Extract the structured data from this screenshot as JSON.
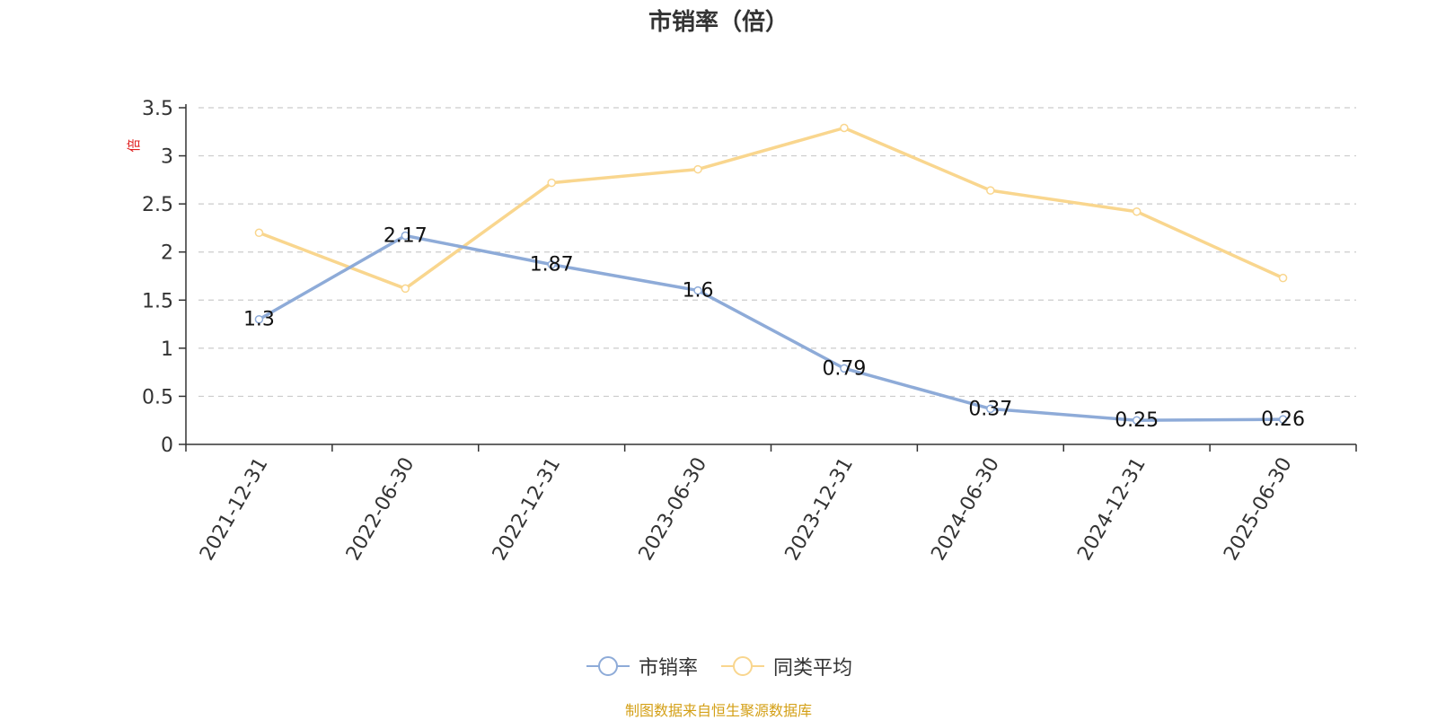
{
  "chart_data": {
    "type": "line",
    "title": "市销率（倍）",
    "xlabel": "",
    "ylabel": "倍",
    "ylim": [
      0,
      3.5
    ],
    "yticks": [
      "0",
      "0.5",
      "1",
      "1.5",
      "2",
      "2.5",
      "3",
      "3.5"
    ],
    "grid": true,
    "legend_position": "bottom",
    "categories": [
      "2021-12-31",
      "2022-06-30",
      "2022-12-31",
      "2023-06-30",
      "2023-12-31",
      "2024-06-30",
      "2024-12-31",
      "2025-06-30"
    ],
    "series": [
      {
        "name": "市销率",
        "color": "#8eabd8",
        "values": [
          1.3,
          2.17,
          1.87,
          1.6,
          0.79,
          0.37,
          0.25,
          0.26
        ],
        "labels": [
          "1.3",
          "2.17",
          "1.87",
          "1.6",
          "0.79",
          "0.37",
          "0.25",
          "0.26"
        ]
      },
      {
        "name": "同类平均",
        "color": "#f9d68e",
        "values": [
          2.2,
          1.62,
          2.72,
          2.86,
          3.29,
          2.64,
          2.42,
          1.73
        ]
      }
    ],
    "source_text": "制图数据来自恒生聚源数据库",
    "source_color": "#d4a017",
    "ylabel_color": "#e02020"
  }
}
